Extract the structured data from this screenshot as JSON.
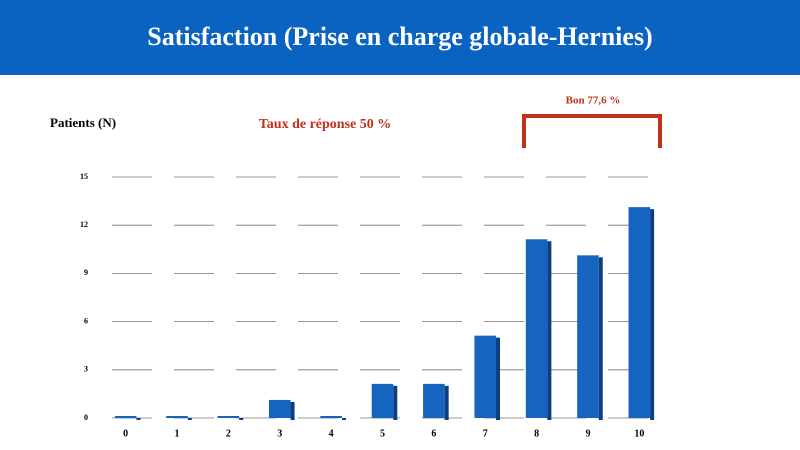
{
  "chart_data": {
    "type": "bar",
    "title": "Satisfaction (Prise en charge globale-Hernies)",
    "y_label": "Patients (N)",
    "annotations": [
      "Taux de réponse 50 %",
      "Bon 77,6 %"
    ],
    "categories": [
      "0",
      "1",
      "2",
      "3",
      "4",
      "5",
      "6",
      "7",
      "8",
      "9",
      "10"
    ],
    "values": [
      0,
      0,
      0,
      1,
      0,
      2,
      2,
      5,
      11,
      10,
      13
    ],
    "color": "#1565c0",
    "ylim": [
      0,
      15
    ],
    "yticks": [
      0,
      3,
      6,
      9,
      12,
      15
    ],
    "grid": true
  }
}
